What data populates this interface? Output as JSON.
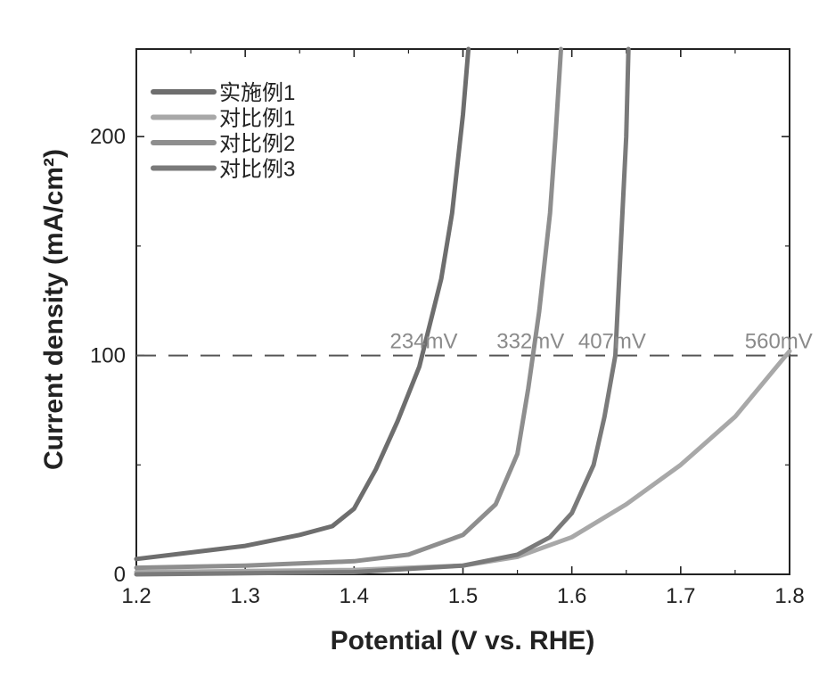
{
  "chart_data": {
    "type": "line",
    "title": "",
    "xlabel": "Potential (V vs. RHE)",
    "ylabel": "Current density (mA/cm²)",
    "xlim": [
      1.2,
      1.8
    ],
    "ylim": [
      0,
      240
    ],
    "x_ticks": [
      "1.2",
      "1.3",
      "1.4",
      "1.5",
      "1.6",
      "1.7",
      "1.8"
    ],
    "y_ticks": [
      "0",
      "100",
      "200"
    ],
    "grid": false,
    "legend_position": "top-left",
    "reference_line": {
      "y": 100,
      "style": "dashed"
    },
    "annotations": [
      {
        "text": "234mV",
        "x": 1.464,
        "y": 100
      },
      {
        "text": "332mV",
        "x": 1.562,
        "y": 100
      },
      {
        "text": "407mV",
        "x": 1.637,
        "y": 100
      },
      {
        "text": "560mV",
        "x": 1.79,
        "y": 100
      }
    ],
    "series": [
      {
        "name": "实施例1",
        "color": "#6e6e6e",
        "points": [
          [
            1.2,
            7
          ],
          [
            1.25,
            10
          ],
          [
            1.3,
            13
          ],
          [
            1.35,
            18
          ],
          [
            1.38,
            22
          ],
          [
            1.4,
            30
          ],
          [
            1.42,
            48
          ],
          [
            1.44,
            70
          ],
          [
            1.46,
            95
          ],
          [
            1.48,
            135
          ],
          [
            1.49,
            165
          ],
          [
            1.5,
            210
          ],
          [
            1.505,
            240
          ]
        ]
      },
      {
        "name": "对比例1",
        "color": "#a8a8a8",
        "points": [
          [
            1.2,
            1
          ],
          [
            1.3,
            1.5
          ],
          [
            1.4,
            2
          ],
          [
            1.5,
            4
          ],
          [
            1.55,
            8
          ],
          [
            1.6,
            17
          ],
          [
            1.65,
            32
          ],
          [
            1.7,
            50
          ],
          [
            1.75,
            72
          ],
          [
            1.8,
            102
          ]
        ]
      },
      {
        "name": "对比例2",
        "color": "#8e8e8e",
        "points": [
          [
            1.2,
            3
          ],
          [
            1.3,
            4
          ],
          [
            1.4,
            6
          ],
          [
            1.45,
            9
          ],
          [
            1.5,
            18
          ],
          [
            1.53,
            32
          ],
          [
            1.55,
            55
          ],
          [
            1.56,
            85
          ],
          [
            1.57,
            120
          ],
          [
            1.58,
            165
          ],
          [
            1.585,
            200
          ],
          [
            1.59,
            240
          ]
        ]
      },
      {
        "name": "对比例3",
        "color": "#7a7a7a",
        "points": [
          [
            1.2,
            0
          ],
          [
            1.4,
            1
          ],
          [
            1.5,
            4
          ],
          [
            1.55,
            9
          ],
          [
            1.58,
            17
          ],
          [
            1.6,
            28
          ],
          [
            1.62,
            50
          ],
          [
            1.63,
            72
          ],
          [
            1.64,
            100
          ],
          [
            1.645,
            150
          ],
          [
            1.65,
            200
          ],
          [
            1.652,
            240
          ]
        ]
      }
    ]
  }
}
